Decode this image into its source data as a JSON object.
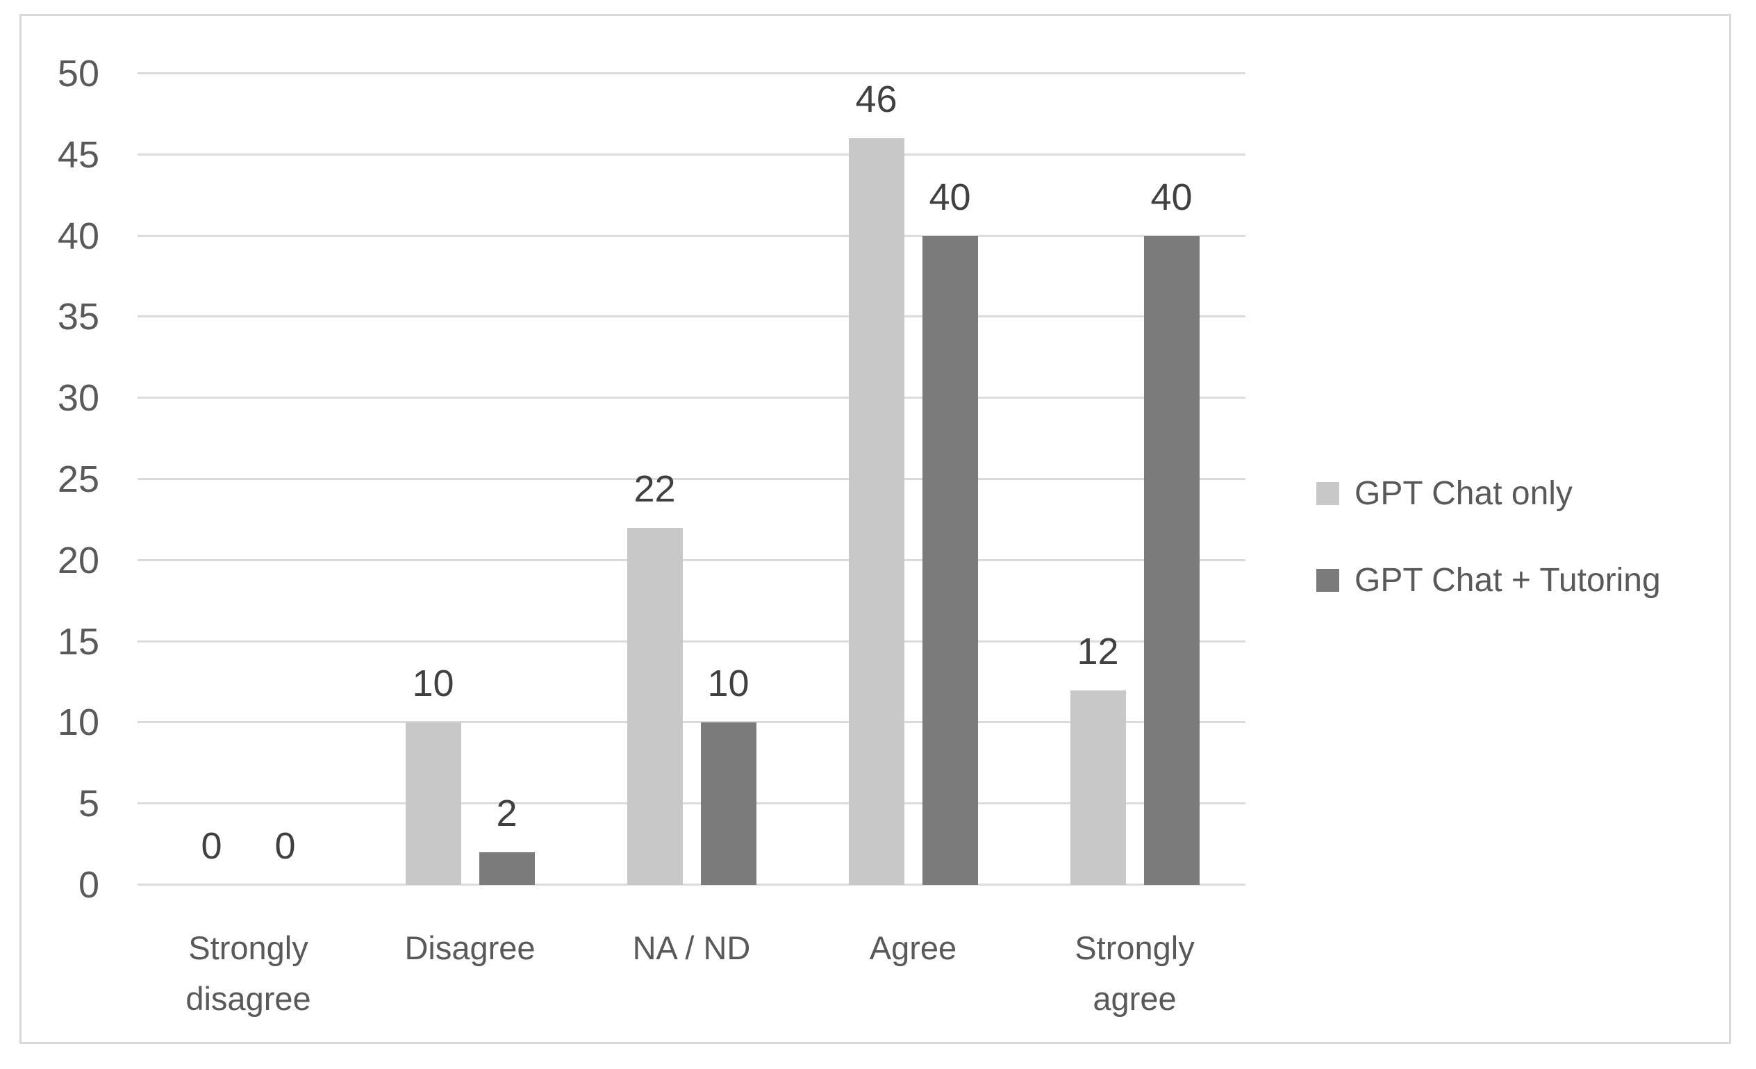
{
  "chart_data": {
    "type": "bar",
    "categories": [
      "Strongly disagree",
      "Disagree",
      "NA / ND",
      "Agree",
      "Strongly agree"
    ],
    "series": [
      {
        "name": "GPT Chat only",
        "color": "#c8c8c8",
        "values": [
          0,
          10,
          22,
          46,
          12
        ]
      },
      {
        "name": "GPT Chat + Tutoring",
        "color": "#7b7b7b",
        "values": [
          0,
          2,
          10,
          40,
          40
        ]
      }
    ],
    "title": "",
    "xlabel": "",
    "ylabel": "",
    "ylim": [
      0,
      50
    ],
    "yticks": [
      0,
      5,
      10,
      15,
      20,
      25,
      30,
      35,
      40,
      45,
      50
    ],
    "grid": true,
    "legend_position": "right",
    "data_labels": true
  },
  "style_colors": {
    "series_light": "#c8c8c8",
    "series_dark": "#7b7b7b",
    "gridline": "#dcdcdc",
    "frame_border": "#d9d9d9",
    "axis_text": "#595959",
    "data_label_text": "#404040"
  }
}
